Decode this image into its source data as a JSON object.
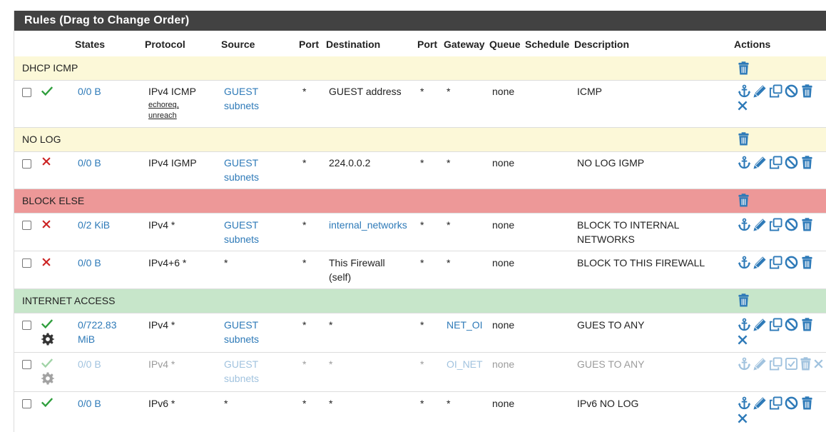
{
  "panel": {
    "title": "Rules (Drag to Change Order)"
  },
  "columns": [
    "States",
    "Protocol",
    "Source",
    "Port",
    "Destination",
    "Port",
    "Gateway",
    "Queue",
    "Schedule",
    "Description",
    "Actions"
  ],
  "separators": [
    "DHCP ICMP",
    "NO LOG",
    "BLOCK ELSE",
    "INTERNET ACCESS"
  ],
  "rules": [
    {
      "states_l1": "0/0 B",
      "states_l2": "",
      "protocol": "IPv4 ICMP",
      "proto_sub1": "echoreq,",
      "proto_sub2": "unreach",
      "source_l1": "GUEST",
      "source_l2": "subnets",
      "src_port": "*",
      "dest_l1": "GUEST address",
      "dest_l2": "",
      "dst_port": "*",
      "gateway": "*",
      "queue": "none",
      "schedule": "",
      "desc_l1": "ICMP",
      "desc_l2": ""
    },
    {
      "states_l1": "0/0 B",
      "states_l2": "",
      "protocol": "IPv4 IGMP",
      "source_l1": "GUEST",
      "source_l2": "subnets",
      "src_port": "*",
      "dest_l1": "224.0.0.2",
      "dest_l2": "",
      "dst_port": "*",
      "gateway": "*",
      "queue": "none",
      "schedule": "",
      "desc_l1": "NO LOG IGMP",
      "desc_l2": ""
    },
    {
      "states_l1": "0/2 KiB",
      "states_l2": "",
      "protocol": "IPv4 *",
      "source_l1": "GUEST",
      "source_l2": "subnets",
      "src_port": "*",
      "dest_l1": "internal_networks",
      "dest_l2": "",
      "dst_port": "*",
      "gateway": "*",
      "queue": "none",
      "schedule": "",
      "desc_l1": "BLOCK TO INTERNAL",
      "desc_l2": "NETWORKS"
    },
    {
      "states_l1": "0/0 B",
      "states_l2": "",
      "protocol": "IPv4+6 *",
      "source_l1": "*",
      "source_l2": "",
      "src_port": "*",
      "dest_l1": "This Firewall",
      "dest_l2": "(self)",
      "dst_port": "*",
      "gateway": "*",
      "queue": "none",
      "schedule": "",
      "desc_l1": "BLOCK TO THIS FIREWALL",
      "desc_l2": ""
    },
    {
      "states_l1": "0/722.83",
      "states_l2": "MiB",
      "protocol": "IPv4 *",
      "source_l1": "GUEST",
      "source_l2": "subnets",
      "src_port": "*",
      "dest_l1": "*",
      "dest_l2": "",
      "dst_port": "*",
      "gateway": "NET_OI",
      "queue": "none",
      "schedule": "",
      "desc_l1": "GUES TO ANY",
      "desc_l2": ""
    },
    {
      "states_l1": "0/0 B",
      "states_l2": "",
      "protocol": "IPv4 *",
      "source_l1": "GUEST",
      "source_l2": "subnets",
      "src_port": "*",
      "dest_l1": "*",
      "dest_l2": "",
      "dst_port": "*",
      "gateway": "OI_NET",
      "queue": "none",
      "schedule": "",
      "desc_l1": "GUES TO ANY",
      "desc_l2": ""
    },
    {
      "states_l1": "0/0 B",
      "states_l2": "",
      "protocol": "IPv6 *",
      "source_l1": "*",
      "source_l2": "",
      "src_port": "*",
      "dest_l1": "*",
      "dest_l2": "",
      "dst_port": "*",
      "gateway": "*",
      "queue": "none",
      "schedule": "",
      "desc_l1": "IPv6 NO LOG",
      "desc_l2": ""
    }
  ],
  "colors": {
    "header_bg": "#424242",
    "separator_yellow": "#fcf8d8",
    "separator_red": "#ed9898",
    "separator_green": "#c7e6ca",
    "link": "#2e7ab8",
    "pass": "#2e9e3c",
    "block": "#cc2222"
  }
}
